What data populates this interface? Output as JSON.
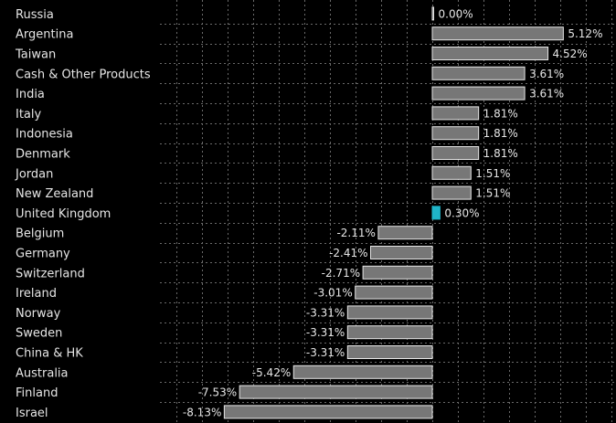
{
  "chart_data": {
    "type": "bar",
    "orientation": "horizontal",
    "categories": [
      "Russia",
      "Argentina",
      "Taiwan",
      "Cash & Other Products",
      "India",
      "Italy",
      "Indonesia",
      "Denmark",
      "Jordan",
      "New Zealand",
      "United Kingdom",
      "Belgium",
      "Germany",
      "Switzerland",
      "Ireland",
      "Norway",
      "Sweden",
      "China & HK",
      "Australia",
      "Finland",
      "Israel"
    ],
    "values": [
      0.0,
      5.12,
      4.52,
      3.61,
      3.61,
      1.81,
      1.81,
      1.81,
      1.51,
      1.51,
      0.3,
      -2.11,
      -2.41,
      -2.71,
      -3.01,
      -3.31,
      -3.31,
      -3.31,
      -5.42,
      -7.53,
      -8.13
    ],
    "value_labels": [
      "0.00%",
      "5.12%",
      "4.52%",
      "3.61%",
      "3.61%",
      "1.81%",
      "1.81%",
      "1.81%",
      "1.51%",
      "1.51%",
      "0.30%",
      "-2.11%",
      "-2.41%",
      "-2.71%",
      "-3.01%",
      "-3.31%",
      "-3.31%",
      "-3.31%",
      "-5.42%",
      "-7.53%",
      "-8.13%"
    ],
    "highlight_index": 10,
    "xlim": [
      -10,
      7
    ],
    "grid": true,
    "title": "",
    "xlabel": "",
    "ylabel": ""
  },
  "colors": {
    "background": "#000000",
    "bar": "#777777",
    "bar_border": "#e6e6e6",
    "highlight": "#1fb5c9",
    "text": "#e6e6e6",
    "grid": "#6a6a6a"
  }
}
